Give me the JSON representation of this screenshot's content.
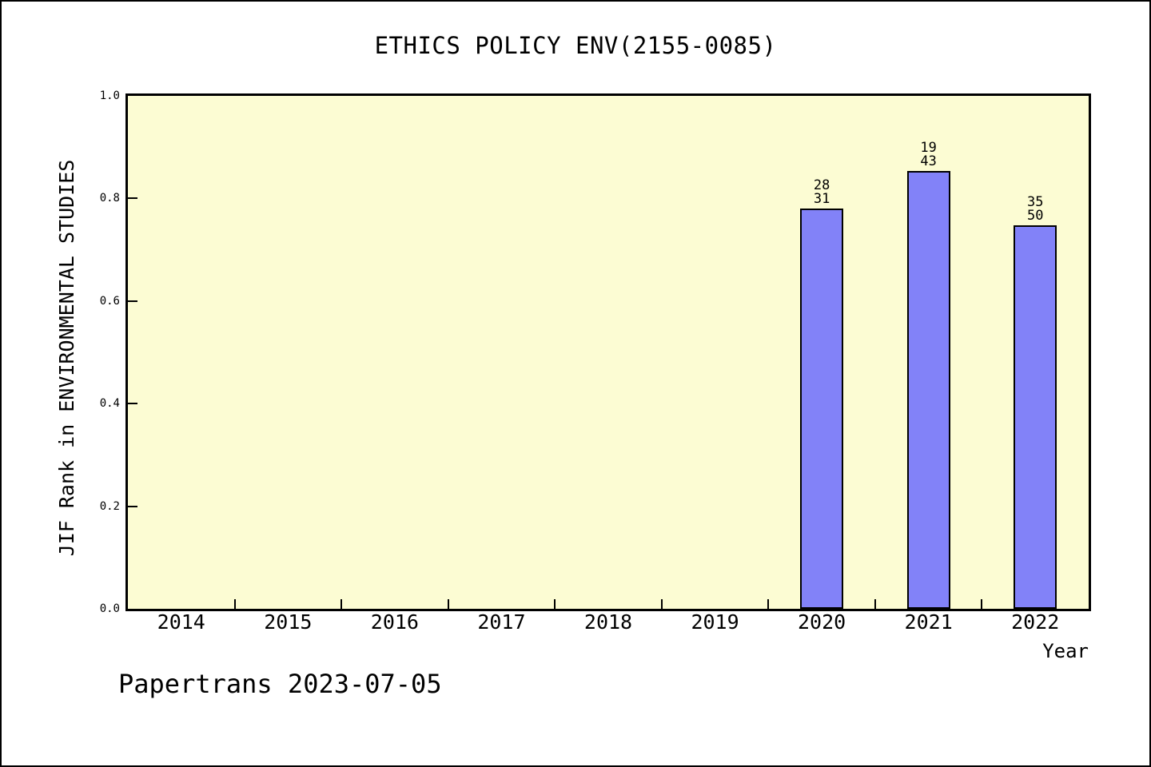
{
  "chart_data": {
    "type": "bar",
    "title": "ETHICS POLICY ENV(2155-0085)",
    "xlabel": "Year",
    "ylabel": "JIF Rank in ENVIRONMENTAL STUDIES",
    "categories": [
      "2014",
      "2015",
      "2016",
      "2017",
      "2018",
      "2019",
      "2020",
      "2021",
      "2022"
    ],
    "series": [
      {
        "name": "JIF Rank",
        "points": [
          {
            "category": "2020",
            "value": 0.78,
            "label_top": "28",
            "label_bottom": "31"
          },
          {
            "category": "2021",
            "value": 0.853,
            "label_top": "19",
            "label_bottom": "43"
          },
          {
            "category": "2022",
            "value": 0.747,
            "label_top": "35",
            "label_bottom": "50"
          }
        ]
      }
    ],
    "ylim": [
      0.0,
      1.0
    ],
    "ytick_labels": [
      "1.0",
      "0.8",
      "0.6",
      "0.4",
      "0.2",
      "0.0"
    ],
    "grid": "off",
    "legend": "none",
    "colors": {
      "bar_fill": "#8282f8",
      "bar_border": "#000000",
      "plot_background": "#fcfcd3",
      "axis_color": "#000000",
      "text_color": "#000000",
      "page_background": "#ffffff"
    }
  },
  "footer": {
    "text": "Papertrans 2023-07-05"
  }
}
